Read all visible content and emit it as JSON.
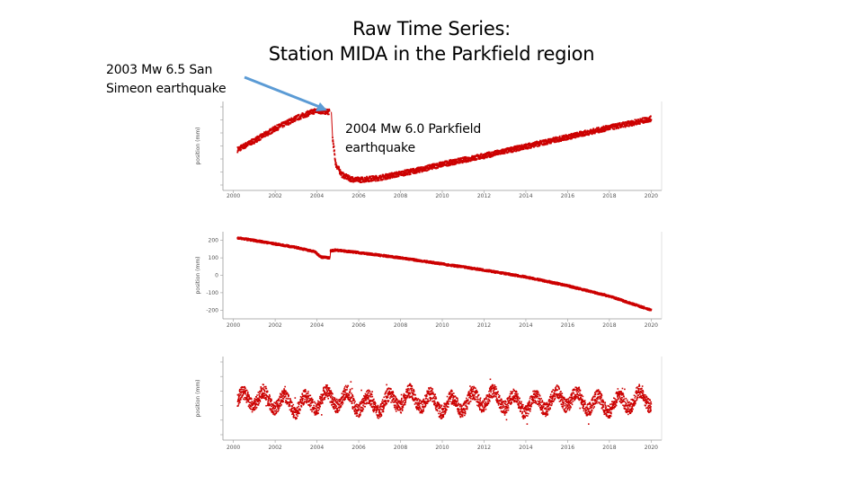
{
  "slide": {
    "title_line1": "Raw Time Series:",
    "title_line2": "Station MIDA in the Parkfield region",
    "callout_2003_line1": "2003 Mw 6.5 San",
    "callout_2003_line2": "Simeon earthquake",
    "callout_2004_line1": "2004 Mw 6.0 Parkfield",
    "callout_2004_line2": "earthquake",
    "arrow_color": "#5b9bd5"
  },
  "chart_data": [
    {
      "type": "scatter",
      "ylabel": "position (mm)",
      "series_color": "#cc0000",
      "xlim": [
        1999.5,
        2020.5
      ],
      "ylim": [
        -60,
        110
      ],
      "xticks": [
        "2000",
        "2002",
        "2004",
        "2006",
        "2008",
        "2010",
        "2012",
        "2014",
        "2016",
        "2018",
        "2020"
      ],
      "yticks": [
        "",
        "",
        "",
        "",
        "",
        "",
        ""
      ],
      "segments": [
        {
          "x": [
            2000.2,
            2001.0,
            2002.0,
            2003.0,
            2003.9
          ],
          "y": [
            18,
            35,
            58,
            78,
            92
          ]
        },
        {
          "x": [
            2003.9,
            2004.6
          ],
          "y": [
            92,
            90
          ]
        },
        {
          "x": [
            2004.75,
            2004.9,
            2005.2,
            2005.6,
            2006.0,
            2006.5,
            2007.0,
            2008.0,
            2009.0,
            2010.0,
            2011.0,
            2012.0,
            2013.0,
            2014.0,
            2015.0,
            2016.0,
            2017.0,
            2018.0,
            2019.0,
            2020.0
          ],
          "y": [
            40,
            -10,
            -30,
            -38,
            -40,
            -38,
            -36,
            -28,
            -20,
            -10,
            -2,
            6,
            15,
            24,
            33,
            42,
            51,
            60,
            68,
            77
          ]
        }
      ]
    },
    {
      "type": "scatter",
      "ylabel": "position (mm)",
      "series_color": "#cc0000",
      "xlim": [
        1999.5,
        2020.5
      ],
      "ylim": [
        -250,
        250
      ],
      "xticks": [
        "2000",
        "2002",
        "2004",
        "2006",
        "2008",
        "2010",
        "2012",
        "2014",
        "2016",
        "2018",
        "2020"
      ],
      "yticks": [
        "200",
        "100",
        "0",
        "-100",
        "-200"
      ],
      "yticks_num": [
        200,
        100,
        0,
        -100,
        -200
      ],
      "segments": [
        {
          "x": [
            2000.2,
            2001.0,
            2002.0,
            2003.0,
            2003.9,
            2004.2,
            2004.6
          ],
          "y": [
            215,
            200,
            180,
            160,
            135,
            105,
            100
          ]
        },
        {
          "x": [
            2004.65,
            2004.9,
            2006.0,
            2008.0,
            2010.0,
            2012.0,
            2014.0,
            2016.0,
            2018.0,
            2020.0
          ],
          "y": [
            140,
            145,
            130,
            100,
            65,
            30,
            -10,
            -60,
            -120,
            -200
          ]
        }
      ]
    },
    {
      "type": "scatter",
      "ylabel": "position (mm)",
      "series_color": "#cc0000",
      "xlim": [
        1999.5,
        2020.5
      ],
      "ylim": [
        -60,
        70
      ],
      "xticks": [
        "2000",
        "2002",
        "2004",
        "2006",
        "2008",
        "2010",
        "2012",
        "2014",
        "2016",
        "2018",
        "2020"
      ],
      "yticks": [
        "",
        "",
        "",
        "",
        "",
        ""
      ],
      "seasonal": {
        "start": 2000.2,
        "end": 2020.0,
        "amplitude": 12,
        "period_years": 1,
        "baseline": 0
      }
    }
  ]
}
